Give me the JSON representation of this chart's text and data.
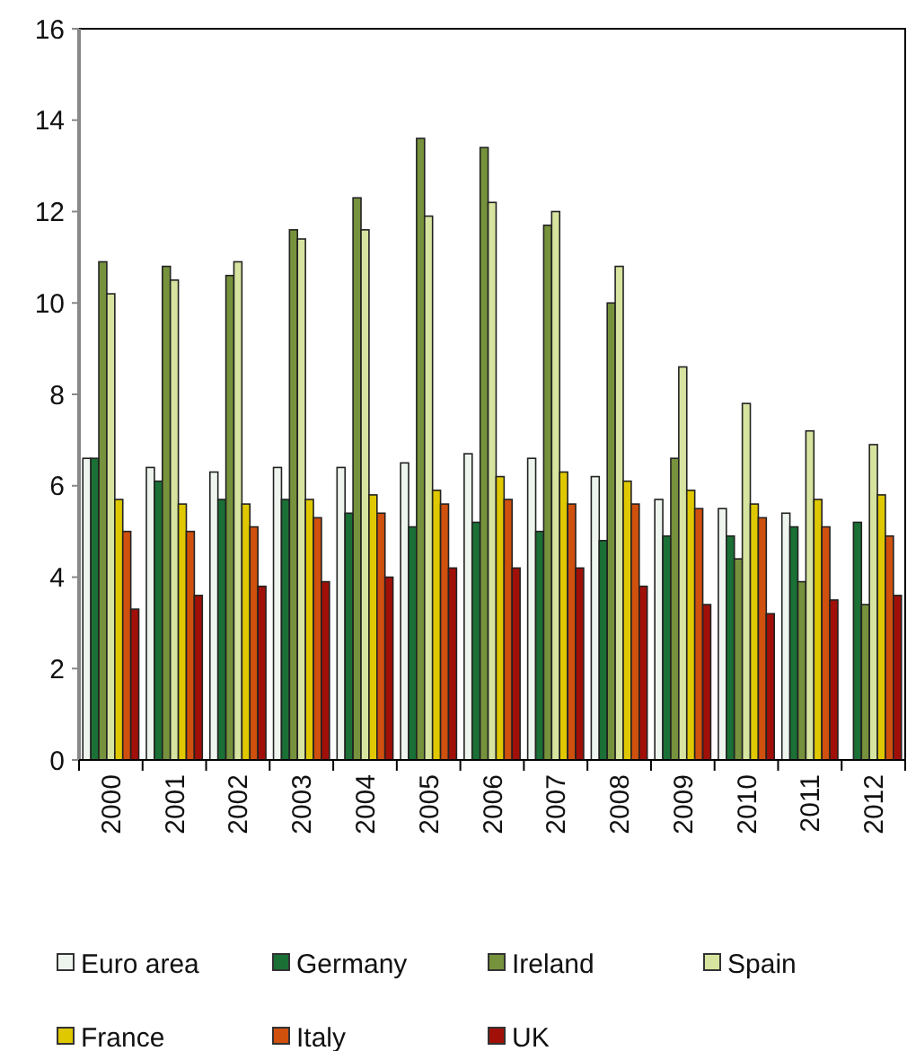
{
  "chart_data": {
    "type": "bar",
    "categories": [
      "2000",
      "2001",
      "2002",
      "2003",
      "2004",
      "2005",
      "2006",
      "2007",
      "2008",
      "2009",
      "2010",
      "2011",
      "2012"
    ],
    "series": [
      {
        "name": "Euro area",
        "color": "#eef5ee",
        "values": [
          6.6,
          6.4,
          6.3,
          6.4,
          6.4,
          6.5,
          6.7,
          6.6,
          6.2,
          5.7,
          5.5,
          5.4,
          null
        ]
      },
      {
        "name": "Germany",
        "color": "#1a7035",
        "values": [
          6.6,
          6.1,
          5.7,
          5.7,
          5.4,
          5.1,
          5.2,
          5.0,
          4.8,
          4.9,
          4.9,
          5.1,
          5.2
        ]
      },
      {
        "name": "Ireland",
        "color": "#76923c",
        "values": [
          10.9,
          10.8,
          10.6,
          11.6,
          12.3,
          13.6,
          13.4,
          11.7,
          10.0,
          6.6,
          4.4,
          3.9,
          3.4
        ]
      },
      {
        "name": "Spain",
        "color": "#d7e4a0",
        "values": [
          10.2,
          10.5,
          10.9,
          11.4,
          11.6,
          11.9,
          12.2,
          12.0,
          10.8,
          8.6,
          7.8,
          7.2,
          6.9
        ]
      },
      {
        "name": "France",
        "color": "#e0c800",
        "values": [
          5.7,
          5.6,
          5.6,
          5.7,
          5.8,
          5.9,
          6.2,
          6.3,
          6.1,
          5.9,
          5.6,
          5.7,
          5.8
        ]
      },
      {
        "name": "Italy",
        "color": "#d0500e",
        "values": [
          5.0,
          5.0,
          5.1,
          5.3,
          5.4,
          5.6,
          5.7,
          5.6,
          5.6,
          5.5,
          5.3,
          5.1,
          4.9
        ]
      },
      {
        "name": "UK",
        "color": "#a01008",
        "values": [
          3.3,
          3.6,
          3.8,
          3.9,
          4.0,
          4.2,
          4.2,
          4.2,
          3.8,
          3.4,
          3.2,
          3.5,
          3.6
        ]
      }
    ],
    "ylim": [
      0,
      16
    ],
    "yticks": [
      0,
      2,
      4,
      6,
      8,
      10,
      12,
      14,
      16
    ],
    "grid": false,
    "legend": "bottom"
  }
}
